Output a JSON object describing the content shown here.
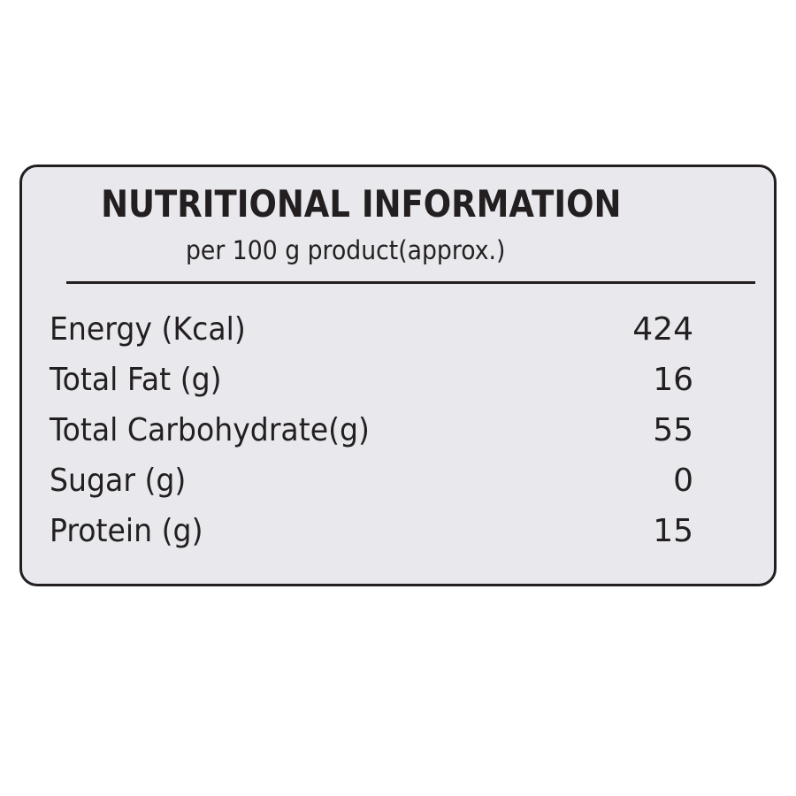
{
  "title": "NUTRITIONAL INFORMATION",
  "subtitle": "per 100 g product(approx.)",
  "rows": [
    {
      "label": "Energy (Kcal)",
      "value": "424"
    },
    {
      "label": "Total Fat (g)",
      "value": "16"
    },
    {
      "label": "Total Carbohydrate(g)",
      "value": "55"
    },
    {
      "label": "Sugar (g)",
      "value": "0"
    },
    {
      "label": "Protein (g)",
      "value": "15"
    }
  ]
}
